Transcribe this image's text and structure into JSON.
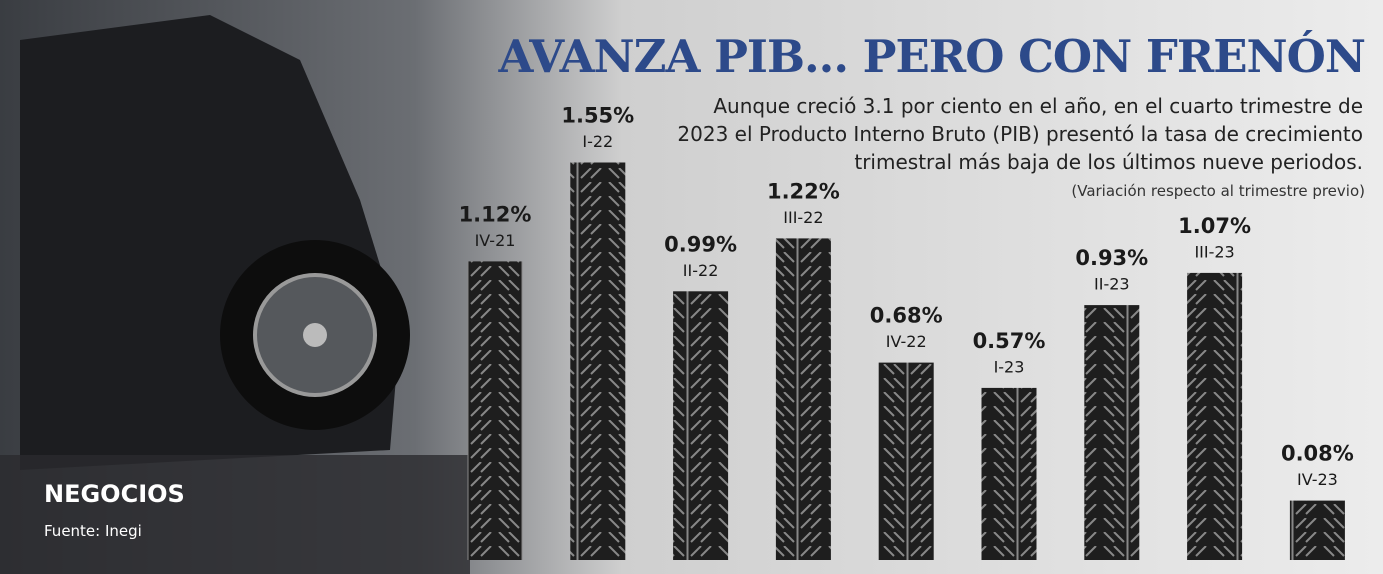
{
  "chart_data": {
    "type": "bar",
    "title": "AVANZA PIB... PERO CON FRENÓN",
    "subtitle": "Aunque creció 3.1 por ciento en el año, en el cuarto trimestre de 2023 el Producto Interno Bruto (PIB) presentó la tasa de crecimiento trimestral más baja de los últimos nueve periodos.",
    "note": "(Variación respecto al trimestre previo)",
    "section": "NEGOCIOS",
    "source": "Fuente: Inegi",
    "categories": [
      "IV-21",
      "I-22",
      "II-22",
      "III-22",
      "IV-22",
      "I-23",
      "II-23",
      "III-23",
      "IV-23"
    ],
    "values": [
      1.12,
      1.55,
      0.99,
      1.22,
      0.68,
      0.57,
      0.93,
      1.07,
      0.08
    ],
    "value_labels": [
      "1.12%",
      "1.55%",
      "0.99%",
      "1.22%",
      "0.68%",
      "0.57%",
      "0.93%",
      "1.07%",
      "0.08%"
    ],
    "color": "#1e1e1e"
  }
}
